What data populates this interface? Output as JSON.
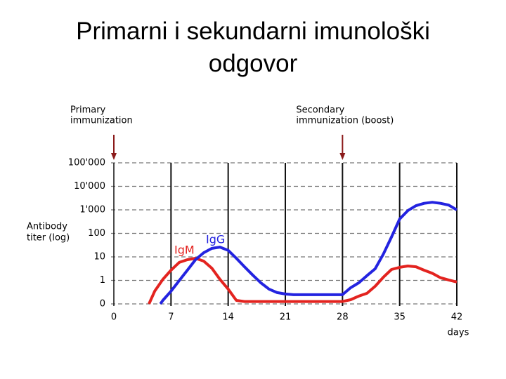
{
  "chart_data": {
    "type": "line",
    "title": "Primarni i sekundarni imunološki odgovor",
    "xlabel": "days",
    "ylabel": [
      "Antibody",
      "titer (log)"
    ],
    "xlim": [
      0,
      42
    ],
    "xticks": [
      0,
      7,
      14,
      21,
      28,
      35,
      42
    ],
    "ylim": [
      0,
      100000
    ],
    "yscale": "log",
    "yticks": [
      0,
      1,
      10,
      100,
      {
        "value": 1000,
        "label": "1'000"
      },
      {
        "value": 10000,
        "label": "10'000"
      },
      {
        "value": 100000,
        "label": "100'000"
      }
    ],
    "grid": true,
    "annotations": [
      {
        "text": [
          "Primary",
          "immunization"
        ],
        "x": 0
      },
      {
        "text": [
          "Secondary",
          "immunization (boost)"
        ],
        "x": 28
      }
    ],
    "series": [
      {
        "name": "IgM",
        "color": "#e3231f",
        "x": [
          4.3,
          5,
          6,
          7,
          8,
          9,
          10,
          11,
          12,
          13,
          14,
          15,
          16,
          28,
          29,
          30,
          31,
          32,
          33,
          34,
          35,
          36,
          37,
          38,
          39,
          40,
          41,
          42
        ],
        "values": [
          0,
          0.54,
          1.1,
          2.7,
          5.8,
          7.6,
          8.7,
          6.6,
          3.3,
          1.1,
          0.63,
          0.15,
          0.1,
          0.1,
          0.18,
          0.33,
          0.45,
          0.75,
          1.35,
          2.9,
          3.6,
          4.1,
          3.8,
          2.7,
          2.0,
          1.3,
          1.04,
          0.93
        ]
      },
      {
        "name": "IgG",
        "color": "#2323e0",
        "x": [
          5.7,
          6,
          7,
          8,
          9,
          10,
          11,
          12,
          13,
          14,
          15,
          16,
          17,
          18,
          19,
          20,
          21,
          22,
          28,
          29,
          30,
          31,
          32,
          33,
          34,
          35,
          36,
          37,
          38,
          39,
          40,
          41,
          42
        ],
        "values": [
          0,
          0.15,
          0.54,
          0.99,
          2.7,
          7.6,
          15,
          23,
          26,
          19,
          8.7,
          3.8,
          1.7,
          0.9,
          0.63,
          0.48,
          0.42,
          0.39,
          0.39,
          0.69,
          0.9,
          1.6,
          3.1,
          13,
          69,
          410,
          930,
          1500,
          1900,
          2100,
          1900,
          1600,
          1000
        ]
      }
    ]
  }
}
